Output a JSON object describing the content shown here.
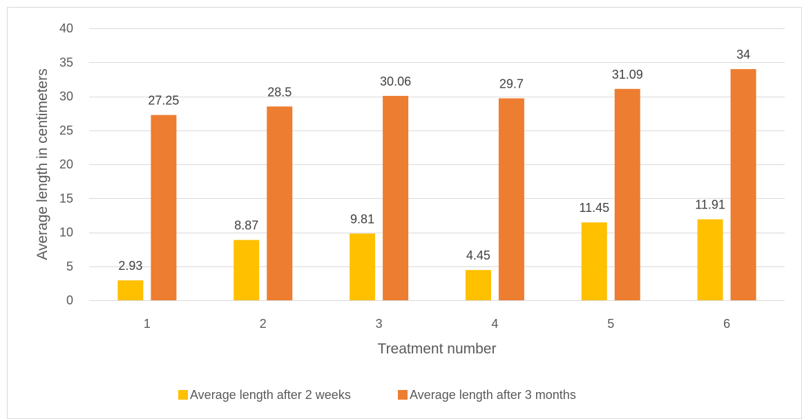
{
  "chart_data": {
    "type": "bar",
    "title": "",
    "xlabel": "Treatment number",
    "ylabel": "Average length in centimeters",
    "categories": [
      "1",
      "2",
      "3",
      "4",
      "5",
      "6"
    ],
    "series": [
      {
        "name": "Average length after 2 weeks",
        "values": [
          2.93,
          8.87,
          9.81,
          4.45,
          11.45,
          11.91
        ],
        "labels": [
          "2.93",
          "8.87",
          "9.81",
          "4.45",
          "11.45",
          "11.91"
        ],
        "color": "#FFC000"
      },
      {
        "name": "Average length after 3 months",
        "values": [
          27.25,
          28.5,
          30.06,
          29.7,
          31.09,
          34
        ],
        "labels": [
          "27.25",
          "28.5",
          "30.06",
          "29.7",
          "31.09",
          "34"
        ],
        "color": "#ED7D31"
      }
    ],
    "ylim": [
      0,
      40
    ],
    "yticks": [
      "0",
      "5",
      "10",
      "15",
      "20",
      "25",
      "30",
      "35",
      "40"
    ],
    "grid": true,
    "legend_position": "bottom"
  }
}
